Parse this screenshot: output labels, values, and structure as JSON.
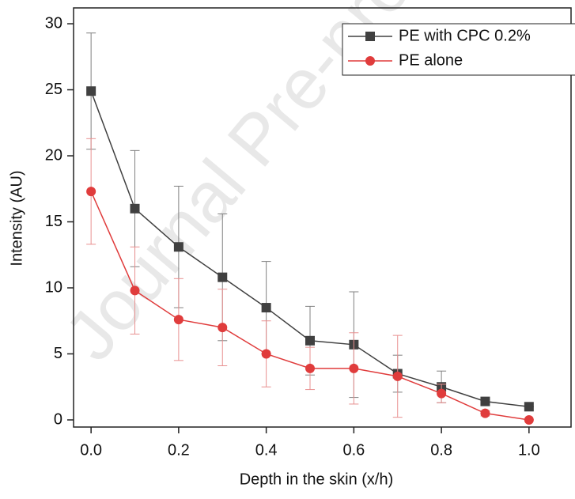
{
  "chart_data": {
    "type": "line",
    "watermark": "Journal Pre-proof",
    "xlabel": "Depth in the skin (x/h)",
    "ylabel": "Intensity (AU)",
    "x": [
      0.0,
      0.1,
      0.2,
      0.3,
      0.4,
      0.5,
      0.6,
      0.7,
      0.8,
      0.9,
      1.0
    ],
    "series": [
      {
        "name": "PE with CPC 0.2%",
        "color": "#404040",
        "error_color": "#808080",
        "marker": "square",
        "values": [
          24.9,
          16.0,
          13.1,
          10.8,
          8.5,
          6.0,
          5.7,
          3.5,
          2.5,
          1.4,
          1.0
        ],
        "errors": [
          4.4,
          4.4,
          4.6,
          4.8,
          3.5,
          2.6,
          4.0,
          1.4,
          1.2,
          0.2,
          0
        ]
      },
      {
        "name": "PE alone",
        "color": "#e03c3c",
        "error_color": "#e89090",
        "marker": "circle",
        "values": [
          17.3,
          9.8,
          7.6,
          7.0,
          5.0,
          3.9,
          3.9,
          3.3,
          2.0,
          0.5,
          0.0
        ],
        "errors": [
          4.0,
          3.3,
          3.1,
          2.9,
          2.5,
          1.6,
          2.7,
          3.1,
          0.7,
          0.2,
          0
        ]
      }
    ],
    "xlim": [
      -0.04,
      1.096
    ],
    "ylim": [
      -0.54,
      31.2
    ],
    "xticks": [
      {
        "value": 0,
        "label": "0.0"
      },
      0.2,
      0.4,
      0.6,
      0.8,
      {
        "value": 1,
        "label": "1.0"
      }
    ],
    "yticks": [
      0,
      5,
      10,
      15,
      20,
      25,
      30
    ],
    "legend": "upper right"
  }
}
